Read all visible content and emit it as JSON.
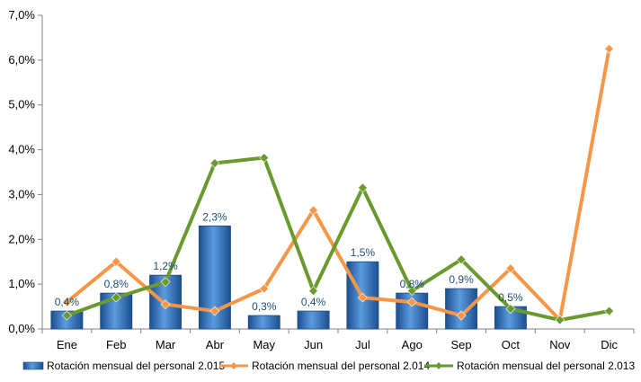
{
  "chart_data": {
    "type": "bar+line",
    "categories": [
      "Ene",
      "Feb",
      "Mar",
      "Abr",
      "May",
      "Jun",
      "Jul",
      "Ago",
      "Sep",
      "Oct",
      "Nov",
      "Dic"
    ],
    "ylim": [
      0,
      7
    ],
    "yticks": [
      "0,0%",
      "1,0%",
      "2,0%",
      "3,0%",
      "4,0%",
      "5,0%",
      "6,0%",
      "7,0%"
    ],
    "grid": false,
    "legend_position": "bottom",
    "series": [
      {
        "name": "Rotación mensual del personal 2.015",
        "type": "bar",
        "color": "#2e75c4",
        "values": [
          0.4,
          0.8,
          1.2,
          2.3,
          0.3,
          0.4,
          1.5,
          0.8,
          0.9,
          0.5,
          null,
          null
        ],
        "data_labels": [
          "0,4%",
          "0,8%",
          "1,2%",
          "2,3%",
          "0,3%",
          "0,4%",
          "1,5%",
          "0,8%",
          "0,9%",
          "0,5%",
          "",
          ""
        ]
      },
      {
        "name": "Rotación mensual del personal 2.014",
        "type": "line",
        "color": "#f79646",
        "values": [
          0.6,
          1.5,
          0.55,
          0.4,
          0.9,
          2.65,
          0.7,
          0.6,
          0.3,
          1.35,
          0.2,
          6.25
        ]
      },
      {
        "name": "Rotación mensual del personal 2.013",
        "type": "line",
        "color": "#6a9a2e",
        "values": [
          0.3,
          0.7,
          1.05,
          3.7,
          3.82,
          0.85,
          3.15,
          0.85,
          1.55,
          0.45,
          0.2,
          0.4
        ]
      }
    ]
  }
}
